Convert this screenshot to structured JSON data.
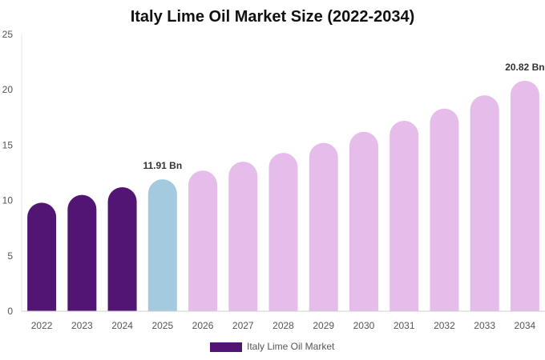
{
  "chart_data": {
    "type": "bar",
    "title": "Italy Lime Oil Market Size (2022-2034)",
    "xlabel": "",
    "ylabel": "",
    "categories": [
      "2022",
      "2023",
      "2024",
      "2025",
      "2026",
      "2027",
      "2028",
      "2029",
      "2030",
      "2031",
      "2032",
      "2033",
      "2034"
    ],
    "series": [
      {
        "name": "Italy Lime Oil Market",
        "values": [
          9.8,
          10.5,
          11.2,
          11.91,
          12.7,
          13.5,
          14.3,
          15.2,
          16.2,
          17.2,
          18.3,
          19.5,
          20.82
        ]
      }
    ],
    "ylim": [
      0,
      25
    ],
    "yticks": [
      0,
      5,
      10,
      15,
      20,
      25
    ],
    "data_labels": [
      {
        "category": "2025",
        "text": "11.91 Bn"
      },
      {
        "category": "2034",
        "text": "20.82 Bn"
      }
    ],
    "bar_colors": [
      "#531574",
      "#531574",
      "#531574",
      "#a3cade",
      "#e6bdea",
      "#e6bdea",
      "#e6bdea",
      "#e6bdea",
      "#e6bdea",
      "#e6bdea",
      "#e6bdea",
      "#e6bdea",
      "#e6bdea"
    ],
    "legend": {
      "entries": [
        {
          "label": "Italy Lime Oil Market",
          "color": "#531574"
        }
      ],
      "position": "bottom"
    },
    "grid": false
  }
}
